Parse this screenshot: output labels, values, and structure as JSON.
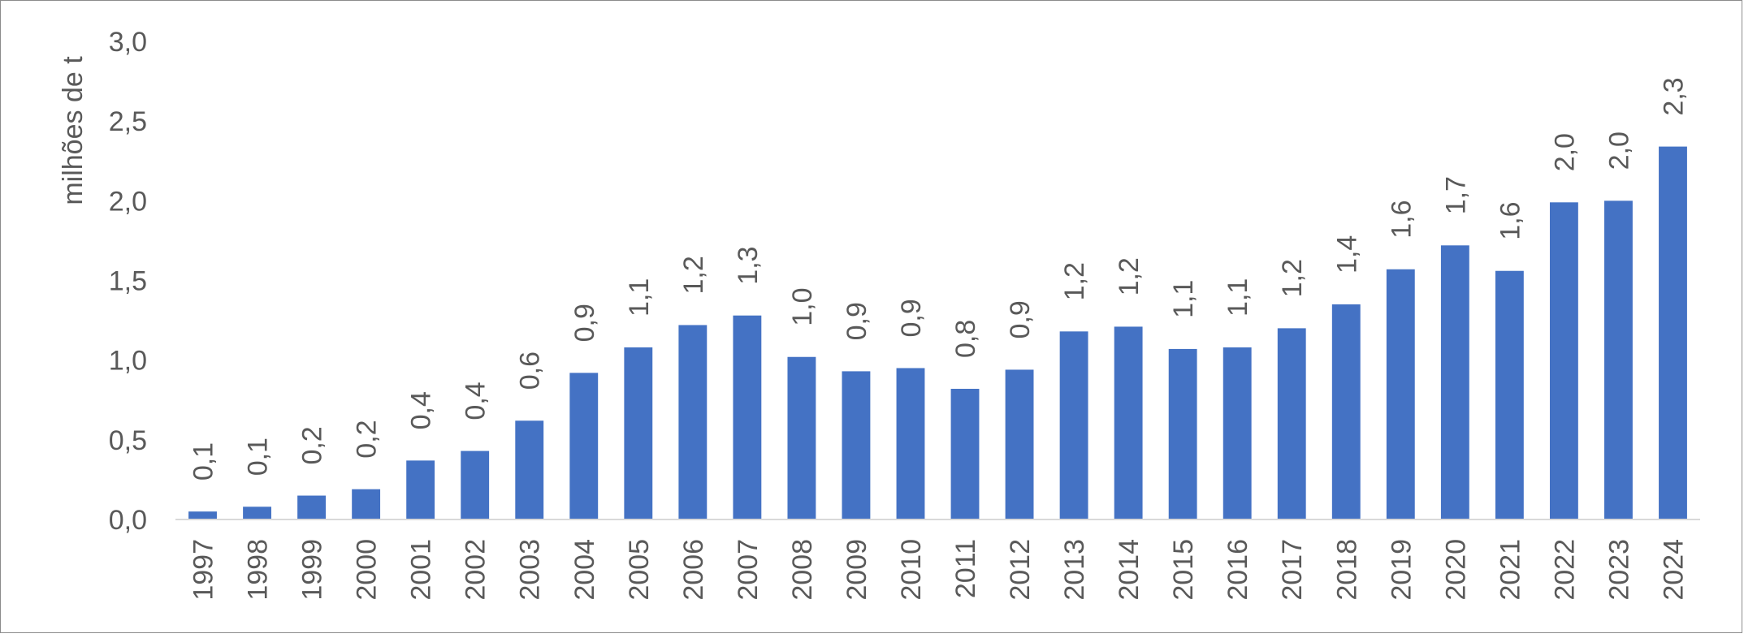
{
  "chart_data": {
    "type": "bar",
    "ylabel": "milhões de t",
    "ylim": [
      0,
      3.0
    ],
    "yticks": [
      "0,0",
      "0,5",
      "1,0",
      "1,5",
      "2,0",
      "2,5",
      "3,0"
    ],
    "grid": false,
    "legend": "none",
    "bar_color": "#4472C4",
    "categories": [
      "1997",
      "1998",
      "1999",
      "2000",
      "2001",
      "2002",
      "2003",
      "2004",
      "2005",
      "2006",
      "2007",
      "2008",
      "2009",
      "2010",
      "2011",
      "2012",
      "2013",
      "2014",
      "2015",
      "2016",
      "2017",
      "2018",
      "2019",
      "2020",
      "2021",
      "2022",
      "2023",
      "2024"
    ],
    "values": [
      0.05,
      0.08,
      0.15,
      0.19,
      0.37,
      0.43,
      0.62,
      0.92,
      1.08,
      1.22,
      1.28,
      1.02,
      0.93,
      0.95,
      0.82,
      0.94,
      1.18,
      1.21,
      1.07,
      1.08,
      1.2,
      1.35,
      1.57,
      1.72,
      1.56,
      1.99,
      2.0,
      2.34
    ],
    "data_labels": [
      "0,1",
      "0,1",
      "0,2",
      "0,2",
      "0,4",
      "0,4",
      "0,6",
      "0,9",
      "1,1",
      "1,2",
      "1,3",
      "1,0",
      "0,9",
      "0,9",
      "0,8",
      "0,9",
      "1,2",
      "1,2",
      "1,1",
      "1,1",
      "1,2",
      "1,4",
      "1,6",
      "1,7",
      "1,6",
      "2,0",
      "2,0",
      "2,3"
    ]
  }
}
